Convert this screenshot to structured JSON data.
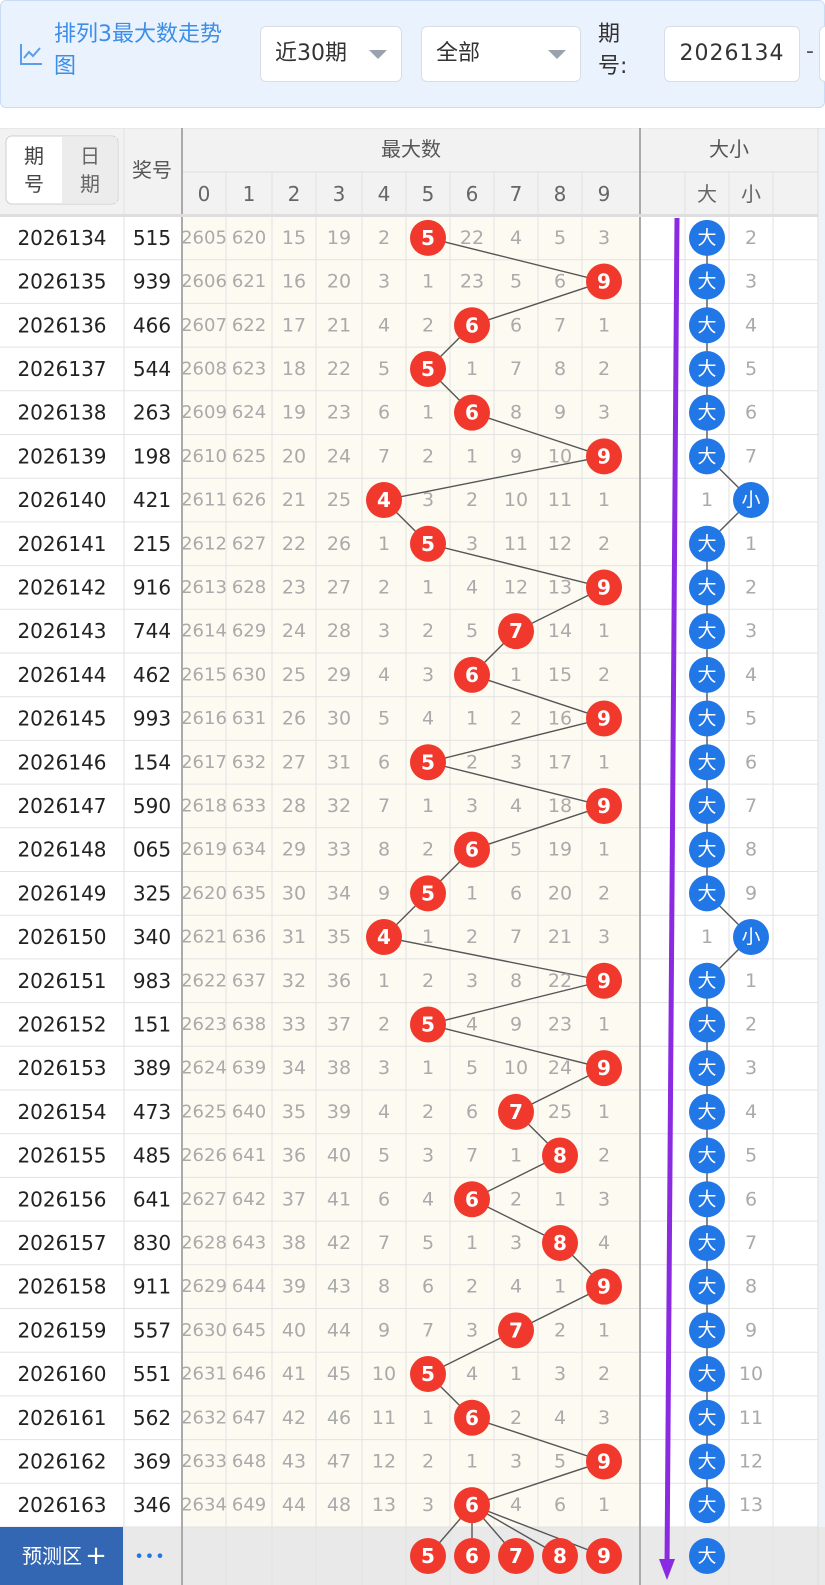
{
  "header": {
    "title": "排列3最大数走势图",
    "icon": "line-chart-icon",
    "period_select": "近30期",
    "filter_select": "全部",
    "issue_label": "期号:",
    "issue_value": "2026134",
    "range_dash": "-"
  },
  "table": {
    "toggle_issue": "期号",
    "toggle_date": "日期",
    "col_award": "奖号",
    "group_max": "最大数",
    "group_size": "大小",
    "digits": [
      "0",
      "1",
      "2",
      "3",
      "4",
      "5",
      "6",
      "7",
      "8",
      "9"
    ],
    "size_headers": [
      "大",
      "小"
    ],
    "rows": [
      {
        "issue": "2026134",
        "award": "515",
        "max": 5,
        "miss": [
          "2605",
          "620",
          "15",
          "19",
          "2",
          "",
          "22",
          "4",
          "5",
          "3"
        ],
        "size": "大",
        "size_miss": [
          "",
          "2"
        ]
      },
      {
        "issue": "2026135",
        "award": "939",
        "max": 9,
        "miss": [
          "2606",
          "621",
          "16",
          "20",
          "3",
          "1",
          "23",
          "5",
          "6",
          ""
        ],
        "size": "大",
        "size_miss": [
          "",
          "3"
        ]
      },
      {
        "issue": "2026136",
        "award": "466",
        "max": 6,
        "miss": [
          "2607",
          "622",
          "17",
          "21",
          "4",
          "2",
          "",
          "6",
          "7",
          "1"
        ],
        "size": "大",
        "size_miss": [
          "",
          "4"
        ]
      },
      {
        "issue": "2026137",
        "award": "544",
        "max": 5,
        "miss": [
          "2608",
          "623",
          "18",
          "22",
          "5",
          "",
          "1",
          "7",
          "8",
          "2"
        ],
        "size": "大",
        "size_miss": [
          "",
          "5"
        ]
      },
      {
        "issue": "2026138",
        "award": "263",
        "max": 6,
        "miss": [
          "2609",
          "624",
          "19",
          "23",
          "6",
          "1",
          "",
          "8",
          "9",
          "3"
        ],
        "size": "大",
        "size_miss": [
          "",
          "6"
        ]
      },
      {
        "issue": "2026139",
        "award": "198",
        "max": 9,
        "miss": [
          "2610",
          "625",
          "20",
          "24",
          "7",
          "2",
          "1",
          "9",
          "10",
          ""
        ],
        "size": "大",
        "size_miss": [
          "",
          "7"
        ]
      },
      {
        "issue": "2026140",
        "award": "421",
        "max": 4,
        "miss": [
          "2611",
          "626",
          "21",
          "25",
          "",
          "3",
          "2",
          "10",
          "11",
          "1"
        ],
        "size": "小",
        "size_miss": [
          "1",
          ""
        ]
      },
      {
        "issue": "2026141",
        "award": "215",
        "max": 5,
        "miss": [
          "2612",
          "627",
          "22",
          "26",
          "1",
          "",
          "3",
          "11",
          "12",
          "2"
        ],
        "size": "大",
        "size_miss": [
          "",
          "1"
        ]
      },
      {
        "issue": "2026142",
        "award": "916",
        "max": 9,
        "miss": [
          "2613",
          "628",
          "23",
          "27",
          "2",
          "1",
          "4",
          "12",
          "13",
          ""
        ],
        "size": "大",
        "size_miss": [
          "",
          "2"
        ]
      },
      {
        "issue": "2026143",
        "award": "744",
        "max": 7,
        "miss": [
          "2614",
          "629",
          "24",
          "28",
          "3",
          "2",
          "5",
          "",
          "14",
          "1"
        ],
        "size": "大",
        "size_miss": [
          "",
          "3"
        ]
      },
      {
        "issue": "2026144",
        "award": "462",
        "max": 6,
        "miss": [
          "2615",
          "630",
          "25",
          "29",
          "4",
          "3",
          "",
          "1",
          "15",
          "2"
        ],
        "size": "大",
        "size_miss": [
          "",
          "4"
        ]
      },
      {
        "issue": "2026145",
        "award": "993",
        "max": 9,
        "miss": [
          "2616",
          "631",
          "26",
          "30",
          "5",
          "4",
          "1",
          "2",
          "16",
          ""
        ],
        "size": "大",
        "size_miss": [
          "",
          "5"
        ]
      },
      {
        "issue": "2026146",
        "award": "154",
        "max": 5,
        "miss": [
          "2617",
          "632",
          "27",
          "31",
          "6",
          "",
          "2",
          "3",
          "17",
          "1"
        ],
        "size": "大",
        "size_miss": [
          "",
          "6"
        ]
      },
      {
        "issue": "2026147",
        "award": "590",
        "max": 9,
        "miss": [
          "2618",
          "633",
          "28",
          "32",
          "7",
          "1",
          "3",
          "4",
          "18",
          ""
        ],
        "size": "大",
        "size_miss": [
          "",
          "7"
        ]
      },
      {
        "issue": "2026148",
        "award": "065",
        "max": 6,
        "miss": [
          "2619",
          "634",
          "29",
          "33",
          "8",
          "2",
          "",
          "5",
          "19",
          "1"
        ],
        "size": "大",
        "size_miss": [
          "",
          "8"
        ]
      },
      {
        "issue": "2026149",
        "award": "325",
        "max": 5,
        "miss": [
          "2620",
          "635",
          "30",
          "34",
          "9",
          "",
          "1",
          "6",
          "20",
          "2"
        ],
        "size": "大",
        "size_miss": [
          "",
          "9"
        ]
      },
      {
        "issue": "2026150",
        "award": "340",
        "max": 4,
        "miss": [
          "2621",
          "636",
          "31",
          "35",
          "",
          "1",
          "2",
          "7",
          "21",
          "3"
        ],
        "size": "小",
        "size_miss": [
          "1",
          ""
        ]
      },
      {
        "issue": "2026151",
        "award": "983",
        "max": 9,
        "miss": [
          "2622",
          "637",
          "32",
          "36",
          "1",
          "2",
          "3",
          "8",
          "22",
          ""
        ],
        "size": "大",
        "size_miss": [
          "",
          "1"
        ]
      },
      {
        "issue": "2026152",
        "award": "151",
        "max": 5,
        "miss": [
          "2623",
          "638",
          "33",
          "37",
          "2",
          "",
          "4",
          "9",
          "23",
          "1"
        ],
        "size": "大",
        "size_miss": [
          "",
          "2"
        ]
      },
      {
        "issue": "2026153",
        "award": "389",
        "max": 9,
        "miss": [
          "2624",
          "639",
          "34",
          "38",
          "3",
          "1",
          "5",
          "10",
          "24",
          ""
        ],
        "size": "大",
        "size_miss": [
          "",
          "3"
        ]
      },
      {
        "issue": "2026154",
        "award": "473",
        "max": 7,
        "miss": [
          "2625",
          "640",
          "35",
          "39",
          "4",
          "2",
          "6",
          "",
          "25",
          "1"
        ],
        "size": "大",
        "size_miss": [
          "",
          "4"
        ]
      },
      {
        "issue": "2026155",
        "award": "485",
        "max": 8,
        "miss": [
          "2626",
          "641",
          "36",
          "40",
          "5",
          "3",
          "7",
          "1",
          "",
          "2"
        ],
        "size": "大",
        "size_miss": [
          "",
          "5"
        ]
      },
      {
        "issue": "2026156",
        "award": "641",
        "max": 6,
        "miss": [
          "2627",
          "642",
          "37",
          "41",
          "6",
          "4",
          "",
          "2",
          "1",
          "3"
        ],
        "size": "大",
        "size_miss": [
          "",
          "6"
        ]
      },
      {
        "issue": "2026157",
        "award": "830",
        "max": 8,
        "miss": [
          "2628",
          "643",
          "38",
          "42",
          "7",
          "5",
          "1",
          "3",
          "",
          "4"
        ],
        "size": "大",
        "size_miss": [
          "",
          "7"
        ]
      },
      {
        "issue": "2026158",
        "award": "911",
        "max": 9,
        "miss": [
          "2629",
          "644",
          "39",
          "43",
          "8",
          "6",
          "2",
          "4",
          "1",
          ""
        ],
        "size": "大",
        "size_miss": [
          "",
          "8"
        ]
      },
      {
        "issue": "2026159",
        "award": "557",
        "max": 7,
        "miss": [
          "2630",
          "645",
          "40",
          "44",
          "9",
          "7",
          "3",
          "",
          "2",
          "1"
        ],
        "size": "大",
        "size_miss": [
          "",
          "9"
        ]
      },
      {
        "issue": "2026160",
        "award": "551",
        "max": 5,
        "miss": [
          "2631",
          "646",
          "41",
          "45",
          "10",
          "",
          "4",
          "1",
          "3",
          "2"
        ],
        "size": "大",
        "size_miss": [
          "",
          "10"
        ]
      },
      {
        "issue": "2026161",
        "award": "562",
        "max": 6,
        "miss": [
          "2632",
          "647",
          "42",
          "46",
          "11",
          "1",
          "",
          "2",
          "4",
          "3"
        ],
        "size": "大",
        "size_miss": [
          "",
          "11"
        ]
      },
      {
        "issue": "2026162",
        "award": "369",
        "max": 9,
        "miss": [
          "2633",
          "648",
          "43",
          "47",
          "12",
          "2",
          "1",
          "3",
          "5",
          ""
        ],
        "size": "大",
        "size_miss": [
          "",
          "12"
        ]
      },
      {
        "issue": "2026163",
        "award": "346",
        "max": 6,
        "miss": [
          "2634",
          "649",
          "44",
          "48",
          "13",
          "3",
          "",
          "4",
          "6",
          "1"
        ],
        "size": "大",
        "size_miss": [
          "",
          "13"
        ]
      }
    ],
    "predict": {
      "label": "预测区",
      "plus": "+",
      "more": "•••",
      "balls": [
        "5",
        "6",
        "7",
        "8",
        "9"
      ],
      "size": "大"
    }
  },
  "colors": {
    "ball_red": "#f0392c",
    "ball_blue": "#2277e6",
    "accent_purple": "#8a2be2",
    "header_blue": "#3b8fe8",
    "predict_bg": "#3366b3"
  }
}
